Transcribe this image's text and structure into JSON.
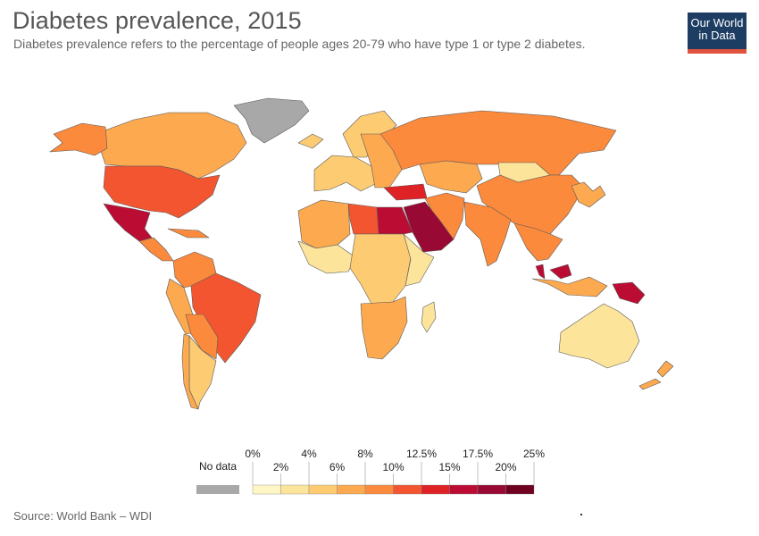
{
  "title": "Diabetes prevalence, 2015",
  "subtitle": "Diabetes prevalence refers to the percentage of people ages 20-79 who have type 1 or type 2 diabetes.",
  "logo": {
    "line1": "Our World",
    "line2": "in Data"
  },
  "source": "Source: World Bank – WDI",
  "legend": {
    "no_data_label": "No data",
    "no_data_color": "#a8a8a8",
    "top_ticks": [
      "0%",
      "4%",
      "8%",
      "12.5%",
      "17.5%",
      "25%"
    ],
    "bottom_ticks": [
      "2%",
      "6%",
      "10%",
      "15%",
      "20%"
    ],
    "bins": [
      {
        "from": 0,
        "to": 2,
        "color": "#fff6c5"
      },
      {
        "from": 2,
        "to": 4,
        "color": "#fde49b"
      },
      {
        "from": 4,
        "to": 6,
        "color": "#fdcb72"
      },
      {
        "from": 6,
        "to": 8,
        "color": "#fca950"
      },
      {
        "from": 8,
        "to": 10,
        "color": "#fb8a3c"
      },
      {
        "from": 10,
        "to": 12.5,
        "color": "#f25530"
      },
      {
        "from": 12.5,
        "to": 15,
        "color": "#df2226"
      },
      {
        "from": 15,
        "to": 17.5,
        "color": "#bb0d33"
      },
      {
        "from": 17.5,
        "to": 20,
        "color": "#980a33"
      },
      {
        "from": 20,
        "to": 25,
        "color": "#6e0020"
      }
    ]
  },
  "regions": [
    {
      "name": "Greenland",
      "color": "#a8a8a8"
    },
    {
      "name": "Canada",
      "color": "#fca950"
    },
    {
      "name": "Alaska",
      "color": "#fb8a3c"
    },
    {
      "name": "United States",
      "color": "#f25530"
    },
    {
      "name": "Mexico",
      "color": "#bb0d33"
    },
    {
      "name": "Central America",
      "color": "#fb8a3c"
    },
    {
      "name": "Caribbean",
      "color": "#fb8a3c"
    },
    {
      "name": "Colombia-Venezuela",
      "color": "#fb8a3c"
    },
    {
      "name": "Peru-Ecuador",
      "color": "#fca950"
    },
    {
      "name": "Brazil",
      "color": "#f25530"
    },
    {
      "name": "Bolivia-Paraguay",
      "color": "#fb8a3c"
    },
    {
      "name": "Argentina",
      "color": "#fdcb72"
    },
    {
      "name": "Chile",
      "color": "#fca950"
    },
    {
      "name": "Iceland-Scandinavia",
      "color": "#fdcb72"
    },
    {
      "name": "Western Europe",
      "color": "#fdcb72"
    },
    {
      "name": "Eastern Europe",
      "color": "#fca950"
    },
    {
      "name": "Russia",
      "color": "#fb8a3c"
    },
    {
      "name": "Kazakhstan",
      "color": "#fca950"
    },
    {
      "name": "Mongolia",
      "color": "#fde49b"
    },
    {
      "name": "China",
      "color": "#fb8a3c"
    },
    {
      "name": "Turkey",
      "color": "#df2226"
    },
    {
      "name": "Middle East",
      "color": "#fb8a3c"
    },
    {
      "name": "Saudi Arabia",
      "color": "#980a33"
    },
    {
      "name": "Egypt",
      "color": "#bb0d33"
    },
    {
      "name": "Libya",
      "color": "#f25530"
    },
    {
      "name": "Northwest Africa",
      "color": "#fca950"
    },
    {
      "name": "West Africa",
      "color": "#fde49b"
    },
    {
      "name": "Central Africa",
      "color": "#fdcb72"
    },
    {
      "name": "East Africa",
      "color": "#fde49b"
    },
    {
      "name": "Southern Africa",
      "color": "#fca950"
    },
    {
      "name": "Madagascar",
      "color": "#fde49b"
    },
    {
      "name": "India",
      "color": "#fb8a3c"
    },
    {
      "name": "Southeast Asia",
      "color": "#fb8a3c"
    },
    {
      "name": "Malaysia",
      "color": "#bb0d33"
    },
    {
      "name": "Indonesia",
      "color": "#fca950"
    },
    {
      "name": "Papua New Guinea",
      "color": "#bb0d33"
    },
    {
      "name": "Japan-Korea",
      "color": "#fca950"
    },
    {
      "name": "Australia",
      "color": "#fde49b"
    },
    {
      "name": "New Zealand",
      "color": "#fca950"
    }
  ]
}
